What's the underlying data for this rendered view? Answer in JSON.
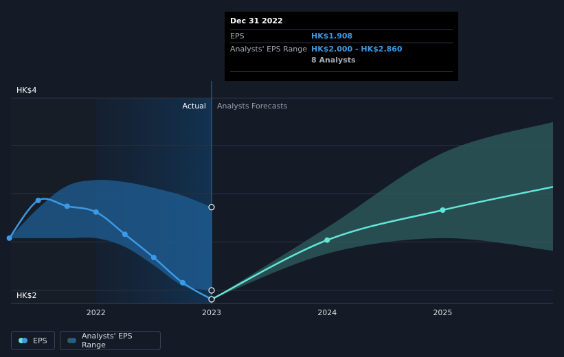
{
  "chart_data": {
    "type": "line",
    "y_axis_labels": [
      "HK$4",
      "HK$2"
    ],
    "x_axis_labels": [
      "2022",
      "2023",
      "2024",
      "2025"
    ],
    "section_labels": {
      "actual": "Actual",
      "forecast": "Analysts Forecasts"
    },
    "x_range": [
      2021.3,
      2025.99
    ],
    "y_range": [
      1.915,
      3.965
    ],
    "series": [
      {
        "name": "EPS",
        "color": "#63e6d8",
        "actual_color": "#3b9ae6",
        "actual_points": [
          {
            "x": 2021.25,
            "y": 2.54
          },
          {
            "x": 2021.5,
            "y": 2.93
          },
          {
            "x": 2021.75,
            "y": 2.87
          },
          {
            "x": 2022.0,
            "y": 2.81
          },
          {
            "x": 2022.25,
            "y": 2.58
          },
          {
            "x": 2022.5,
            "y": 2.34
          },
          {
            "x": 2022.75,
            "y": 2.08
          },
          {
            "x": 2023.0,
            "y": 1.908
          }
        ],
        "forecast_points": [
          {
            "x": 2023.0,
            "y": 1.908
          },
          {
            "x": 2024.0,
            "y": 2.52
          },
          {
            "x": 2025.0,
            "y": 2.83
          },
          {
            "x": 2026.0,
            "y": 3.07
          }
        ]
      },
      {
        "name": "Analysts' EPS Range",
        "actual_color": "#1f5f95",
        "forecast_color": "#2f5f5f",
        "actual_band": [
          {
            "x": 2021.25,
            "low": 2.54,
            "high": 2.54
          },
          {
            "x": 2021.5,
            "low": 2.54,
            "high": 2.85
          },
          {
            "x": 2021.75,
            "low": 2.54,
            "high": 3.08
          },
          {
            "x": 2022.0,
            "low": 2.54,
            "high": 3.14
          },
          {
            "x": 2022.25,
            "low": 2.45,
            "high": 3.12
          },
          {
            "x": 2022.5,
            "low": 2.26,
            "high": 3.06
          },
          {
            "x": 2022.75,
            "low": 2.05,
            "high": 2.98
          },
          {
            "x": 2023.0,
            "low": 2.0,
            "high": 2.86
          }
        ],
        "forecast_band": [
          {
            "x": 2023.0,
            "low": 1.908,
            "high": 1.908
          },
          {
            "x": 2024.0,
            "low": 2.38,
            "high": 2.65
          },
          {
            "x": 2025.0,
            "low": 2.54,
            "high": 3.42
          },
          {
            "x": 2026.0,
            "low": 2.41,
            "high": 3.74
          }
        ]
      }
    ],
    "tooltip": {
      "date": "Dec 31 2022",
      "eps_label": "EPS",
      "eps_value": "HK$1.908",
      "range_label": "Analysts' EPS Range",
      "range_value": "HK$2.000 - HK$2.860",
      "analysts": "8 Analysts"
    },
    "legend": [
      {
        "label": "EPS",
        "colors": [
          "#63e6d8",
          "#3b9ae6"
        ]
      },
      {
        "label": "Analysts' EPS Range",
        "colors": [
          "#2f5f5f",
          "#1f5f95"
        ]
      }
    ]
  }
}
